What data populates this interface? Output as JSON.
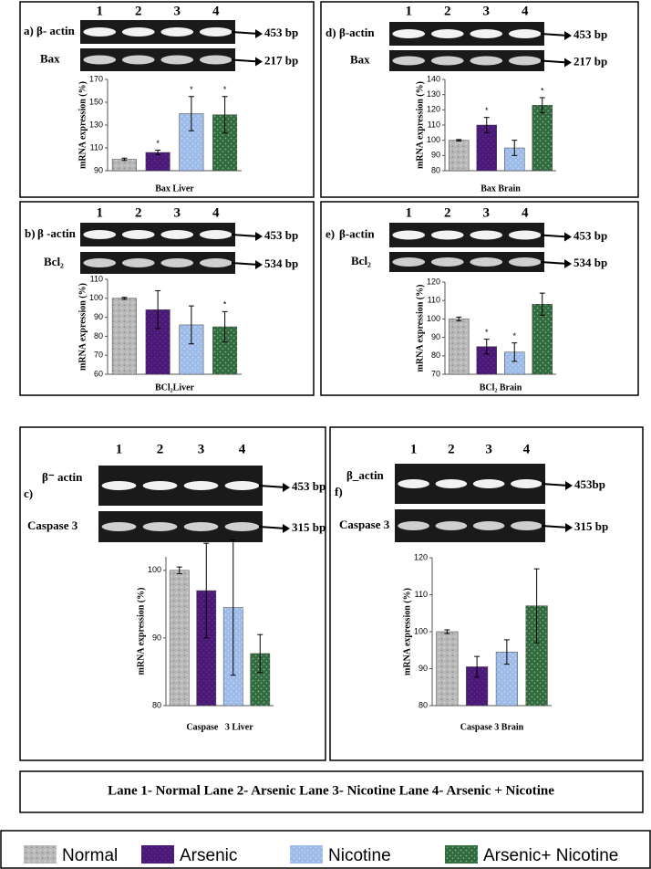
{
  "chart_data": [
    {
      "type": "bar",
      "panel_label": "a)",
      "lanes": [
        "1",
        "2",
        "3",
        "4"
      ],
      "gels": [
        {
          "label": "β- actin",
          "size": "453 bp"
        },
        {
          "label": "Bax",
          "size": "217 bp"
        }
      ],
      "ylabel": "mRNA expression (%)",
      "xlabel": "Bax Liver",
      "values": [
        100,
        106,
        140,
        139
      ],
      "errors": [
        1,
        2,
        15,
        16
      ],
      "significance": [
        null,
        "*",
        "*",
        "*"
      ],
      "ylim": [
        90,
        170
      ],
      "yticks": [
        90,
        110,
        130,
        150,
        170
      ]
    },
    {
      "type": "bar",
      "panel_label": "d)",
      "lanes": [
        "1",
        "2",
        "3",
        "4"
      ],
      "gels": [
        {
          "label": "β-actin",
          "size": "453 bp"
        },
        {
          "label": "Bax",
          "size": "217 bp"
        }
      ],
      "ylabel": "mRNA expression (%)",
      "xlabel": "Bax Brain",
      "values": [
        100,
        110,
        95,
        123
      ],
      "errors": [
        0.5,
        5,
        5,
        5
      ],
      "significance": [
        null,
        "*",
        null,
        "*"
      ],
      "ylim": [
        80,
        140
      ],
      "yticks": [
        80,
        90,
        100,
        110,
        120,
        130,
        140
      ]
    },
    {
      "type": "bar",
      "panel_label": "b)",
      "lanes": [
        "1",
        "2",
        "3",
        "4"
      ],
      "gels": [
        {
          "label": "β -actin",
          "size": "453 bp"
        },
        {
          "label": "Bcl₂",
          "size": "534 bp"
        }
      ],
      "ylabel": "mRNA expression (%)",
      "xlabel": "BCl₂Liver",
      "values": [
        100,
        94,
        86,
        85
      ],
      "errors": [
        0.5,
        10,
        10,
        8
      ],
      "significance": [
        null,
        null,
        null,
        "*"
      ],
      "ylim": [
        60,
        110
      ],
      "yticks": [
        60,
        70,
        80,
        90,
        100,
        110
      ]
    },
    {
      "type": "bar",
      "panel_label": "e)",
      "lanes": [
        "1",
        "2",
        "3",
        "4"
      ],
      "gels": [
        {
          "label": "β-actin",
          "size": "453 bp"
        },
        {
          "label": "Bcl₂",
          "size": "534 bp"
        }
      ],
      "ylabel": "mRNA expression (%)",
      "xlabel": "BCl₂ Brain",
      "values": [
        100,
        85,
        82,
        108
      ],
      "errors": [
        1,
        4,
        5,
        6
      ],
      "significance": [
        null,
        "*",
        "*",
        null
      ],
      "ylim": [
        70,
        120
      ],
      "yticks": [
        70,
        80,
        90,
        100,
        110,
        120
      ]
    },
    {
      "type": "bar",
      "panel_label": "c)",
      "lanes": [
        "1",
        "2",
        "3",
        "4"
      ],
      "gels": [
        {
          "label": "β⁻ actin",
          "size": "453 bp"
        },
        {
          "label": "Caspase 3",
          "size": "315 bp"
        }
      ],
      "ylabel": "mRNA expression (%)",
      "xlabel": "Caspase   3 Liver",
      "values": [
        100,
        97,
        94.5,
        87.7
      ],
      "errors": [
        0.5,
        7,
        10,
        2.8
      ],
      "ylim": [
        80,
        102
      ],
      "yticks": [
        80,
        90,
        100
      ]
    },
    {
      "type": "bar",
      "panel_label": "f)",
      "lanes": [
        "1",
        "2",
        "3",
        "4"
      ],
      "gels": [
        {
          "label": "β_actin",
          "size": "453bp"
        },
        {
          "label": "Caspase 3",
          "size": "315 bp"
        }
      ],
      "ylabel": "mRNA expression (%)",
      "xlabel": "Caspase 3 Brain",
      "values": [
        100,
        90.5,
        94.5,
        107
      ],
      "errors": [
        0.5,
        2.8,
        3.3,
        10
      ],
      "ylim": [
        80,
        120
      ],
      "yticks": [
        80,
        90,
        100,
        110,
        120
      ]
    }
  ],
  "lane_key": "Lane 1- Normal  Lane 2- Arsenic  Lane 3- Nicotine  Lane 4- Arsenic + Nicotine",
  "legend": [
    {
      "name": "Normal",
      "color": "#b8b8b8"
    },
    {
      "name": "Arsenic",
      "color": "#4a1877"
    },
    {
      "name": "Nicotine",
      "color": "#9dbbe9"
    },
    {
      "name": "Arsenic+ Nicotine",
      "color": "#2f6b3d"
    }
  ]
}
